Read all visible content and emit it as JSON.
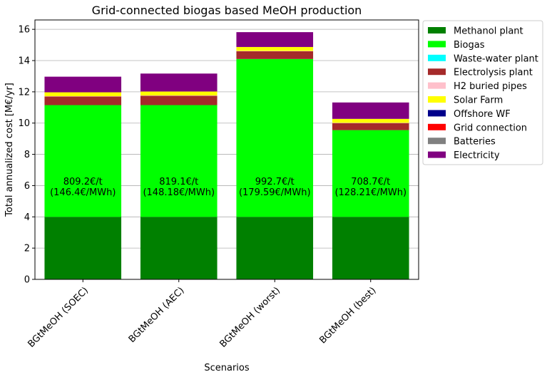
{
  "chart_data": {
    "type": "bar",
    "stacked": true,
    "title": "Grid-connected biogas based MeOH production",
    "xlabel": "Scenarios",
    "ylabel": "Total annualized cost [M€/yr]",
    "ylim": [
      0,
      16.6
    ],
    "yticks": [
      0,
      2,
      4,
      6,
      8,
      10,
      12,
      14,
      16
    ],
    "grid": "horizontal",
    "legend_position": "outside-right",
    "categories": [
      "BGtMeOH (SOEC)",
      "BGtMeOH (AEC)",
      "BGtMeOH (worst)",
      "BGtMeOH (best)"
    ],
    "series": [
      {
        "name": "Methanol plant",
        "color": "#008000",
        "values": [
          4.0,
          4.0,
          4.0,
          4.0
        ]
      },
      {
        "name": "Biogas",
        "color": "#00ff00",
        "values": [
          7.15,
          7.15,
          10.1,
          5.55
        ]
      },
      {
        "name": "Waste-water plant",
        "color": "#00ffff",
        "values": [
          0.0,
          0.0,
          0.0,
          0.0
        ]
      },
      {
        "name": "Electrolysis plant",
        "color": "#a52a2a",
        "values": [
          0.55,
          0.6,
          0.5,
          0.45
        ]
      },
      {
        "name": "H2 buried pipes",
        "color": "#ffc0cb",
        "values": [
          0.02,
          0.02,
          0.02,
          0.02
        ]
      },
      {
        "name": "Solar Farm",
        "color": "#ffff00",
        "values": [
          0.25,
          0.25,
          0.25,
          0.25
        ]
      },
      {
        "name": "Offshore WF",
        "color": "#00008b",
        "values": [
          0.0,
          0.0,
          0.0,
          0.0
        ]
      },
      {
        "name": "Grid connection",
        "color": "#ff0000",
        "values": [
          0.0,
          0.0,
          0.0,
          0.0
        ]
      },
      {
        "name": "Batteries",
        "color": "#808080",
        "values": [
          0.0,
          0.0,
          0.0,
          0.0
        ]
      },
      {
        "name": "Electricity",
        "color": "#800080",
        "values": [
          1.0,
          1.15,
          0.95,
          1.05
        ]
      }
    ],
    "annotations": [
      {
        "category": "BGtMeOH (SOEC)",
        "line1": "809.2€/t",
        "line2": "(146.4€/MWh)"
      },
      {
        "category": "BGtMeOH (AEC)",
        "line1": "819.1€/t",
        "line2": "(148.18€/MWh)"
      },
      {
        "category": "BGtMeOH (worst)",
        "line1": "992.7€/t",
        "line2": "(179.59€/MWh)"
      },
      {
        "category": "BGtMeOH (best)",
        "line1": "708.7€/t",
        "line2": "(128.21€/MWh)"
      }
    ]
  }
}
